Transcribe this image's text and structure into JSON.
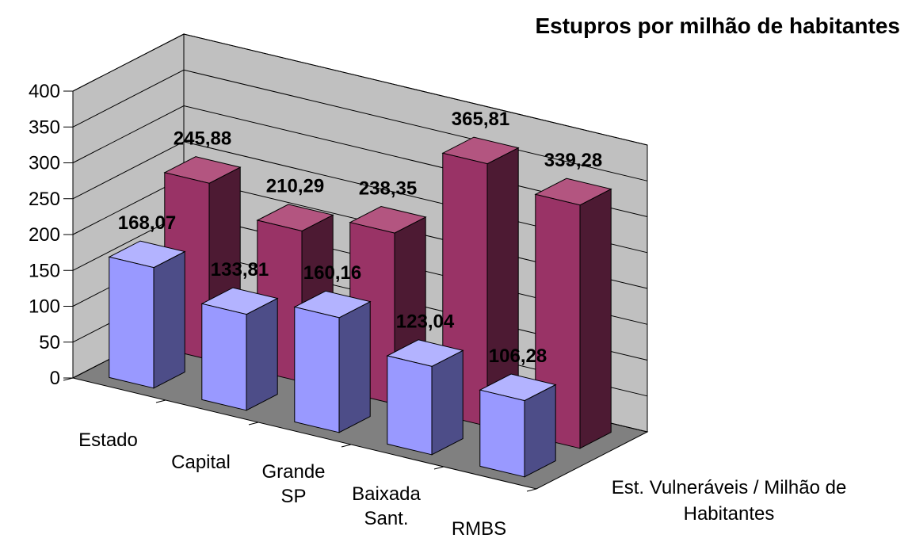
{
  "chart_data": {
    "type": "bar",
    "title": "Estupros por milhão de habitantes",
    "categories": [
      "Estado",
      "Capital",
      "Grande SP",
      "Baixada Sant.",
      "RMBS"
    ],
    "series": [
      {
        "values": [
          168.07,
          133.81,
          160.16,
          123.04,
          106.28
        ],
        "labels": [
          "168,07",
          "133,81",
          "160,16",
          "123,04",
          "106,28"
        ]
      },
      {
        "name": "Est. Vulneráveis / Milhão de Habitantes",
        "values": [
          245.88,
          210.29,
          238.35,
          365.81,
          339.28
        ],
        "labels": [
          "245,88",
          "210,29",
          "238,35",
          "365,81",
          "339,28"
        ]
      }
    ],
    "ylim": [
      0,
      400
    ],
    "yticks": [
      "0",
      "50",
      "100",
      "150",
      "200",
      "250",
      "300",
      "350",
      "400"
    ],
    "grid": true,
    "colors": {
      "series0_front": "#9999ff",
      "series0_side": "#4d4d88",
      "series0_top": "#b3b3ff",
      "series1_front": "#993366",
      "series1_side": "#4d1a33",
      "series1_top": "#b35580",
      "back_wall": "#c0c0c0",
      "side_wall": "#c0c0c0",
      "floor": "#808080"
    }
  }
}
